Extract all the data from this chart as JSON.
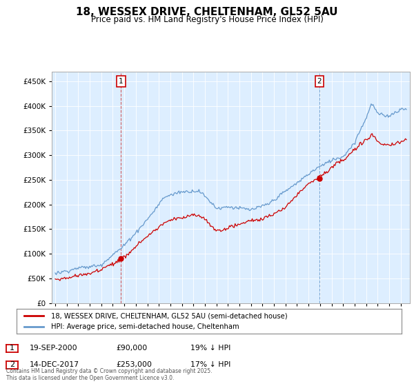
{
  "title": "18, WESSEX DRIVE, CHELTENHAM, GL52 5AU",
  "subtitle": "Price paid vs. HM Land Registry's House Price Index (HPI)",
  "legend_label_red": "18, WESSEX DRIVE, CHELTENHAM, GL52 5AU (semi-detached house)",
  "legend_label_blue": "HPI: Average price, semi-detached house, Cheltenham",
  "annotation1_label": "1",
  "annotation1_date": "19-SEP-2000",
  "annotation1_price": "£90,000",
  "annotation1_hpi": "19% ↓ HPI",
  "annotation2_label": "2",
  "annotation2_date": "14-DEC-2017",
  "annotation2_price": "£253,000",
  "annotation2_hpi": "17% ↓ HPI",
  "footer": "Contains HM Land Registry data © Crown copyright and database right 2025.\nThis data is licensed under the Open Government Licence v3.0.",
  "ylim": [
    0,
    470000
  ],
  "yticks": [
    0,
    50000,
    100000,
    150000,
    200000,
    250000,
    300000,
    350000,
    400000,
    450000
  ],
  "color_red": "#cc0000",
  "color_blue": "#6699cc",
  "color_annotation_box": "#cc0000",
  "chart_bg": "#ddeeff",
  "marker1_x_year": 2000.72,
  "marker1_y": 90000,
  "marker2_x_year": 2017.95,
  "marker2_y": 253000,
  "vline1_x": 2000.72,
  "vline2_x": 2017.95,
  "xmin": 1995,
  "xmax": 2025.5
}
